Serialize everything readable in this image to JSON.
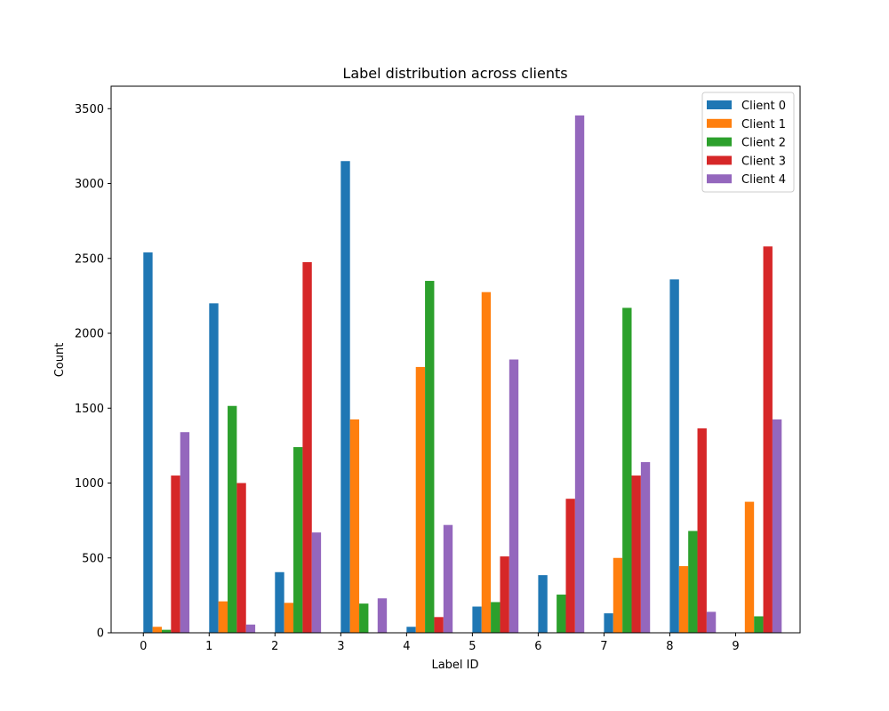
{
  "chart_data": {
    "type": "bar",
    "title": "Label distribution across clients",
    "xlabel": "Label ID",
    "ylabel": "Count",
    "categories": [
      "0",
      "1",
      "2",
      "3",
      "4",
      "5",
      "6",
      "7",
      "8",
      "9"
    ],
    "ylim": [
      0,
      3650
    ],
    "yticks": [
      0,
      500,
      1000,
      1500,
      2000,
      2500,
      3000,
      3500
    ],
    "grid": false,
    "legend_position": "top-right",
    "series": [
      {
        "name": "Client 0",
        "color": "#1f77b4",
        "values": [
          2540,
          2200,
          405,
          3150,
          40,
          175,
          385,
          130,
          2360,
          0
        ]
      },
      {
        "name": "Client 1",
        "color": "#ff7f0e",
        "values": [
          40,
          210,
          200,
          1425,
          1775,
          2275,
          0,
          500,
          445,
          875
        ]
      },
      {
        "name": "Client 2",
        "color": "#2ca02c",
        "values": [
          20,
          1515,
          1240,
          195,
          2350,
          205,
          255,
          2170,
          680,
          110
        ]
      },
      {
        "name": "Client 3",
        "color": "#d62728",
        "values": [
          1050,
          1000,
          2475,
          0,
          105,
          510,
          895,
          1050,
          1365,
          2580
        ]
      },
      {
        "name": "Client 4",
        "color": "#9467bd",
        "values": [
          1340,
          55,
          670,
          230,
          720,
          1825,
          3455,
          1140,
          140,
          1425
        ]
      }
    ]
  }
}
